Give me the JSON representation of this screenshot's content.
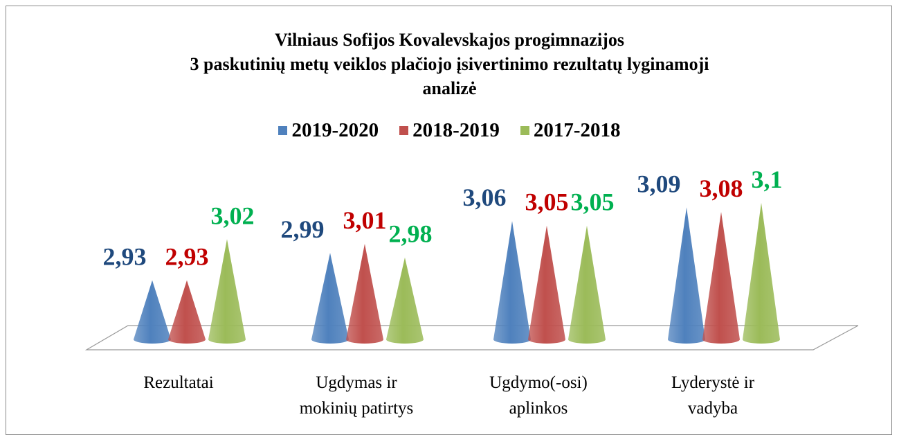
{
  "chart_data": {
    "type": "cone",
    "title": "Vilniaus Sofijos Kovalevskajos progimnazijos\n3 paskutinių metų  veiklos plačiojo įsivertinimo rezultatų lyginamoji\nanalizė",
    "categories": [
      "Rezultatai",
      "Ugdymas ir\nmokinių patirtys",
      "Ugdymo(-osi)\naplinkos",
      "Lyderystė ir\nvadyba"
    ],
    "series": [
      {
        "name": "2019-2020",
        "color": "#4f81bd",
        "label_color": "#1f497d",
        "values": [
          2.93,
          2.99,
          3.06,
          3.09
        ],
        "value_labels": [
          "2,93",
          "2,99",
          "3,06",
          "3,09"
        ]
      },
      {
        "name": "2018-2019",
        "color": "#c0504d",
        "label_color": "#c00000",
        "values": [
          2.93,
          3.01,
          3.05,
          3.08
        ],
        "value_labels": [
          "2,93",
          "3,01",
          "3,05",
          "3,08"
        ]
      },
      {
        "name": "2017-2018",
        "color": "#9bbb59",
        "label_color": "#00b050",
        "values": [
          3.02,
          2.98,
          3.05,
          3.1
        ],
        "value_labels": [
          "3,02",
          "2,98",
          "3,05",
          "3,1"
        ]
      }
    ],
    "ylim": [
      2.8,
      3.15
    ],
    "legend": "top"
  }
}
